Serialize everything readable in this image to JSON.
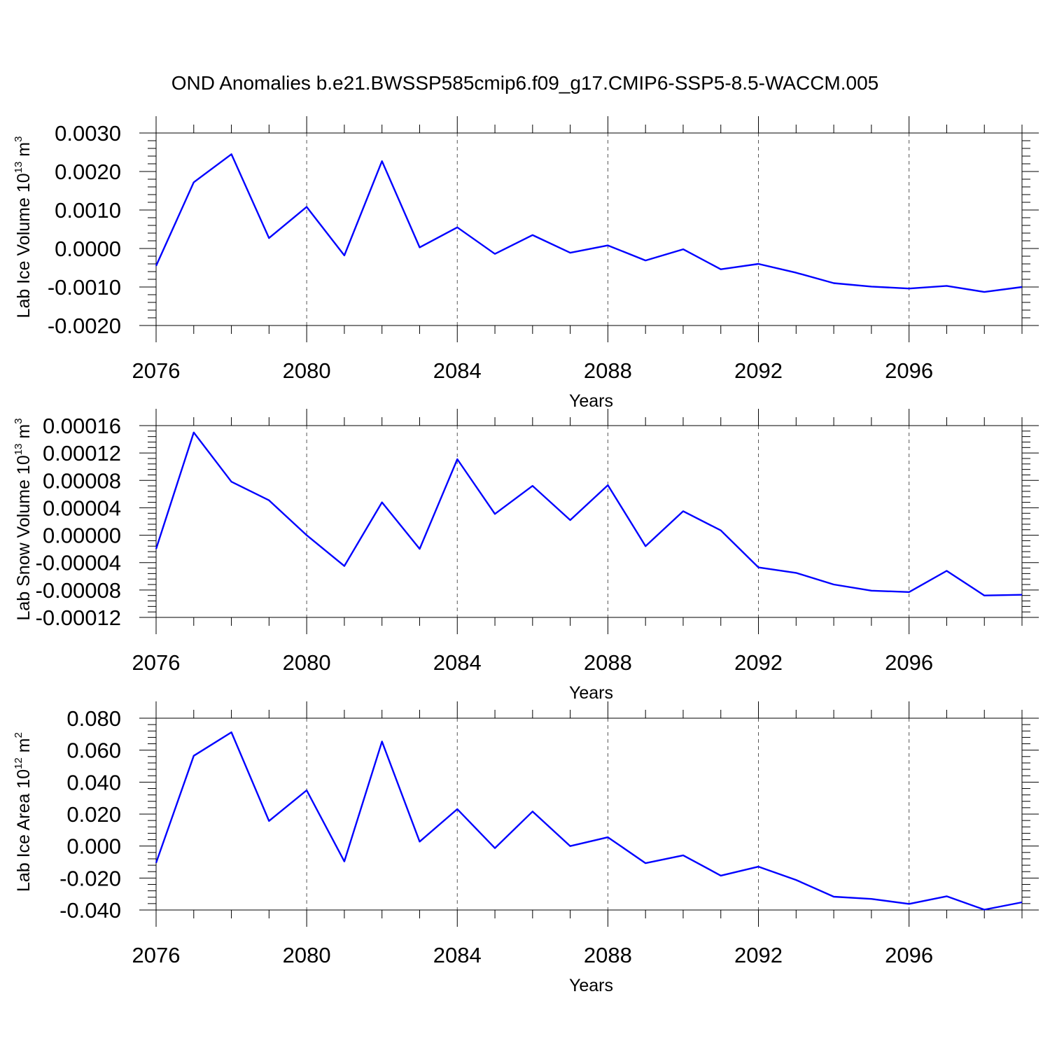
{
  "title": "OND Anomalies b.e21.BWSSP585cmip6.f09_g17.CMIP6-SSP5-8.5-WACCM.005",
  "colors": {
    "line": "#0000ff",
    "frame": "#000000",
    "grid": "#555555",
    "background": "#ffffff"
  },
  "chart_data": [
    {
      "type": "line",
      "ylabel_prefix": "Lab Ice Volume 10",
      "ylabel_exponent": "13",
      "ylabel_suffix": " m",
      "ylabel_unit_exponent": "3",
      "xlabel": "Years",
      "xlim": [
        2076,
        2099
      ],
      "ylim": [
        -0.002,
        0.003
      ],
      "x_ticks": [
        2076,
        2080,
        2084,
        2088,
        2092,
        2096
      ],
      "x_tick_labels": [
        "2076",
        "2080",
        "2084",
        "2088",
        "2092",
        "2096"
      ],
      "y_ticks": [
        0.003,
        0.002,
        0.001,
        0.0,
        -0.001,
        -0.002
      ],
      "y_tick_labels": [
        "0.0030",
        "0.0020",
        "0.0010",
        "0.0000",
        "-0.0010",
        "-0.0020"
      ],
      "grid_x_dashed": [
        2080,
        2084,
        2088,
        2092,
        2096
      ],
      "series": [
        {
          "name": "Lab Ice Volume",
          "x": [
            2076,
            2077,
            2078,
            2079,
            2080,
            2081,
            2082,
            2083,
            2084,
            2085,
            2086,
            2087,
            2088,
            2089,
            2090,
            2091,
            2092,
            2093,
            2094,
            2095,
            2096,
            2097,
            2098,
            2099
          ],
          "values": [
            -0.00045,
            0.00172,
            0.00245,
            0.00027,
            0.00108,
            -0.00018,
            0.00227,
            3e-05,
            0.00055,
            -0.00014,
            0.00035,
            -0.00011,
            8e-05,
            -0.00031,
            -2e-05,
            -0.00054,
            -0.0004,
            -0.00063,
            -0.0009,
            -0.00099,
            -0.00104,
            -0.00097,
            -0.00113,
            -0.001
          ]
        }
      ]
    },
    {
      "type": "line",
      "ylabel_prefix": "Lab Snow Volume 10",
      "ylabel_exponent": "13",
      "ylabel_suffix": " m",
      "ylabel_unit_exponent": "3",
      "xlabel": "Years",
      "xlim": [
        2076,
        2099
      ],
      "ylim": [
        -0.00012,
        0.00016
      ],
      "x_ticks": [
        2076,
        2080,
        2084,
        2088,
        2092,
        2096
      ],
      "x_tick_labels": [
        "2076",
        "2080",
        "2084",
        "2088",
        "2092",
        "2096"
      ],
      "y_ticks": [
        0.00016,
        0.00012,
        8e-05,
        4e-05,
        0.0,
        -4e-05,
        -8e-05,
        -0.00012
      ],
      "y_tick_labels": [
        "0.00016",
        "0.00012",
        "0.00008",
        "0.00004",
        "0.00000",
        "-0.00004",
        "-0.00008",
        "-0.00012"
      ],
      "grid_x_dashed": [
        2080,
        2084,
        2088,
        2092,
        2096
      ],
      "series": [
        {
          "name": "Lab Snow Volume",
          "x": [
            2076,
            2077,
            2078,
            2079,
            2080,
            2081,
            2082,
            2083,
            2084,
            2085,
            2086,
            2087,
            2088,
            2089,
            2090,
            2091,
            2092,
            2093,
            2094,
            2095,
            2096,
            2097,
            2098,
            2099
          ],
          "values": [
            -2e-05,
            0.00015,
            7.8e-05,
            5.1e-05,
            0.0,
            -4.5e-05,
            4.8e-05,
            -2e-05,
            0.000111,
            3.1e-05,
            7.2e-05,
            2.2e-05,
            7.3e-05,
            -1.6e-05,
            3.5e-05,
            7e-06,
            -4.7e-05,
            -5.5e-05,
            -7.2e-05,
            -8.1e-05,
            -8.3e-05,
            -5.2e-05,
            -8.8e-05,
            -8.7e-05
          ]
        }
      ]
    },
    {
      "type": "line",
      "ylabel_prefix": "Lab Ice Area 10",
      "ylabel_exponent": "12",
      "ylabel_suffix": " m",
      "ylabel_unit_exponent": "2",
      "xlabel": "Years",
      "xlim": [
        2076,
        2099
      ],
      "ylim": [
        -0.04,
        0.08
      ],
      "x_ticks": [
        2076,
        2080,
        2084,
        2088,
        2092,
        2096
      ],
      "x_tick_labels": [
        "2076",
        "2080",
        "2084",
        "2088",
        "2092",
        "2096"
      ],
      "y_ticks": [
        0.08,
        0.06,
        0.04,
        0.02,
        0.0,
        -0.02,
        -0.04
      ],
      "y_tick_labels": [
        "0.080",
        "0.060",
        "0.040",
        "0.020",
        "0.000",
        "-0.020",
        "-0.040"
      ],
      "grid_x_dashed": [
        2080,
        2084,
        2088,
        2092,
        2096
      ],
      "series": [
        {
          "name": "Lab Ice Area",
          "x": [
            2076,
            2077,
            2078,
            2079,
            2080,
            2081,
            2082,
            2083,
            2084,
            2085,
            2086,
            2087,
            2088,
            2089,
            2090,
            2091,
            2092,
            2093,
            2094,
            2095,
            2096,
            2097,
            2098,
            2099
          ],
          "values": [
            -0.0105,
            0.0565,
            0.0712,
            0.0157,
            0.0349,
            -0.0096,
            0.0654,
            0.0028,
            0.0231,
            -0.0013,
            0.0216,
            0.0,
            0.0055,
            -0.0107,
            -0.0058,
            -0.0185,
            -0.0129,
            -0.0212,
            -0.0317,
            -0.0331,
            -0.0362,
            -0.0314,
            -0.0398,
            -0.0352
          ]
        }
      ]
    }
  ]
}
